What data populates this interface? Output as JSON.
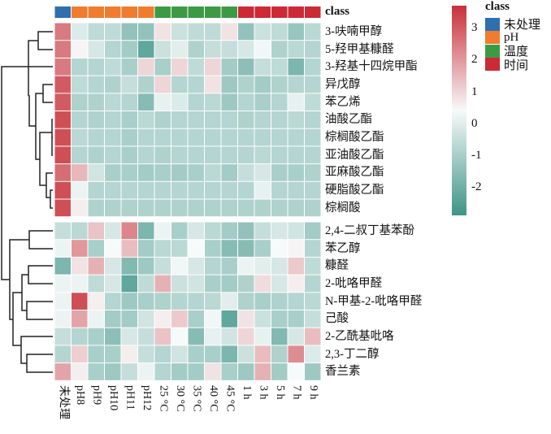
{
  "chart_data": {
    "type": "heatmap",
    "title": "",
    "columns": [
      "未处理",
      "pH8",
      "pH9",
      "pH10",
      "pH11",
      "pH12",
      "25 °C",
      "30 °C",
      "35 °C",
      "40 °C",
      "45 °C",
      "1 h",
      "3 h",
      "5 h",
      "7 h",
      "9 h"
    ],
    "column_classes": [
      "未处理",
      "pH",
      "pH",
      "pH",
      "pH",
      "pH",
      "温度",
      "温度",
      "温度",
      "温度",
      "温度",
      "时间",
      "时间",
      "时间",
      "时间",
      "时间"
    ],
    "rows_top": [
      {
        "name": "3-呋喃甲醇",
        "values": [
          2.5,
          -0.1,
          -0.6,
          -0.6,
          -1.4,
          -1.4,
          0.8,
          -0.4,
          -0.6,
          -0.6,
          0.8,
          -1.4,
          -0.4,
          -0.6,
          -1.3,
          -0.7
        ]
      },
      {
        "name": "5-羟甲基糠醛",
        "values": [
          2.5,
          0.5,
          -0.2,
          -0.8,
          -1.1,
          -2.3,
          -0.4,
          0.0,
          -0.9,
          -0.5,
          -0.5,
          -0.2,
          0.3,
          -0.9,
          -0.7,
          -0.8
        ]
      },
      {
        "name": "3-羟基十四烷甲酯",
        "values": [
          2.5,
          -0.8,
          -0.8,
          -0.6,
          -1.0,
          1.0,
          -1.0,
          1.0,
          -0.6,
          1.0,
          -1.1,
          -1.5,
          -0.5,
          -0.6,
          -1.8,
          -0.8
        ]
      },
      {
        "name": "异戊醇",
        "values": [
          3.0,
          -0.6,
          -0.8,
          -0.9,
          -0.5,
          -0.9,
          1.0,
          -0.8,
          -0.8,
          0.8,
          -1.2,
          -0.9,
          -1.1,
          -0.9,
          -0.8,
          -0.8
        ]
      },
      {
        "name": "苯乙烯",
        "values": [
          3.0,
          -0.9,
          -0.9,
          -0.7,
          -0.8,
          -1.6,
          0.1,
          -0.1,
          -0.8,
          -0.7,
          -1.2,
          -0.8,
          -1.0,
          -0.8,
          0.1,
          -0.6
        ]
      },
      {
        "name": "油酸乙酯",
        "values": [
          3.2,
          -0.8,
          -0.9,
          -0.8,
          -1.0,
          -0.7,
          -0.9,
          -0.8,
          -0.8,
          -0.8,
          -0.8,
          -0.9,
          -0.8,
          -0.8,
          -0.7,
          -0.8
        ]
      },
      {
        "name": "棕榈酸乙酯",
        "values": [
          3.2,
          -0.7,
          -0.8,
          -0.8,
          -1.0,
          -0.8,
          -0.8,
          -0.8,
          -0.8,
          -0.8,
          -0.8,
          -0.8,
          -0.8,
          -0.8,
          -0.8,
          -0.8
        ]
      },
      {
        "name": "亚油酸乙酯",
        "values": [
          3.2,
          -0.8,
          -0.9,
          -0.8,
          -1.0,
          -0.8,
          -0.9,
          -0.8,
          -0.8,
          -0.8,
          -0.8,
          -0.8,
          -0.7,
          -0.8,
          -0.8,
          -0.8
        ]
      },
      {
        "name": "亚麻酸乙酯",
        "values": [
          2.7,
          1.5,
          -0.3,
          -1.0,
          -1.0,
          -1.1,
          -1.0,
          -1.1,
          -1.0,
          -0.7,
          -1.1,
          -0.5,
          -0.2,
          -1.0,
          -1.0,
          -0.9
        ]
      },
      {
        "name": "硬脂酸乙酯",
        "values": [
          3.2,
          0.2,
          -0.8,
          -0.8,
          -0.8,
          -0.8,
          -0.8,
          -0.8,
          -0.8,
          -0.8,
          -0.8,
          -0.8,
          0.1,
          -0.8,
          -0.8,
          -0.8
        ]
      },
      {
        "name": "棕榈酸",
        "values": [
          3.2,
          0.6,
          -0.9,
          -0.9,
          -0.9,
          -0.9,
          -0.9,
          -0.9,
          -0.9,
          -0.9,
          -0.9,
          -0.9,
          -0.9,
          -0.9,
          -0.9,
          -0.9
        ]
      }
    ],
    "rows_bottom": [
      {
        "name": "2,4-二叔丁基苯酚",
        "values": [
          -0.5,
          -0.7,
          1.3,
          -0.2,
          2.3,
          -1.8,
          0.2,
          -1.0,
          -0.2,
          -0.7,
          -1.1,
          -1.4,
          -0.5,
          -0.2,
          -0.3,
          -1.1
        ]
      },
      {
        "name": "苯乙醇",
        "values": [
          0.2,
          2.0,
          -1.0,
          0.4,
          1.4,
          -1.1,
          -0.7,
          -0.7,
          0.4,
          -1.0,
          -1.6,
          -1.6,
          -1.0,
          0.4,
          0.5,
          -0.8
        ]
      },
      {
        "name": "糠醛",
        "values": [
          -1.8,
          0.8,
          1.6,
          -0.2,
          -1.7,
          -1.2,
          -0.5,
          0.3,
          -0.2,
          -0.8,
          -1.0,
          0.2,
          0.0,
          -0.2,
          1.2,
          -0.6
        ]
      },
      {
        "name": "2-吡咯甲醛",
        "values": [
          0.2,
          0.2,
          -0.6,
          -0.2,
          -2.3,
          -0.6,
          1.6,
          -0.4,
          -0.3,
          -1.0,
          -1.1,
          -0.9,
          0.9,
          -0.2,
          0.6,
          -0.8
        ]
      },
      {
        "name": "N-甲基-2-吡咯甲醛",
        "values": [
          0.2,
          3.2,
          0.6,
          -0.8,
          -1.2,
          -1.0,
          -0.9,
          -0.8,
          -0.8,
          -0.7,
          0.0,
          -0.9,
          -1.0,
          -0.9,
          -0.8,
          -0.7
        ]
      },
      {
        "name": "己酸",
        "values": [
          0.2,
          1.8,
          0.2,
          -1.1,
          -1.1,
          -0.3,
          0.6,
          1.2,
          -1.0,
          0.3,
          -2.3,
          0.8,
          -0.4,
          -1.0,
          -1.0,
          -0.5
        ]
      },
      {
        "name": "2-乙酰基吡咯",
        "values": [
          -0.5,
          -0.8,
          -1.0,
          -1.5,
          -0.2,
          -0.5,
          1.3,
          0.4,
          -1.6,
          0.1,
          -0.3,
          1.0,
          0.1,
          -1.7,
          -0.2,
          1.4
        ]
      },
      {
        "name": "2,3-丁二醇",
        "values": [
          -0.8,
          1.1,
          -1.0,
          -1.0,
          0.6,
          -0.5,
          -0.8,
          -0.3,
          -1.0,
          -1.0,
          -1.8,
          -0.4,
          1.4,
          -0.9,
          2.2,
          -0.1
        ]
      },
      {
        "name": "香兰素",
        "values": [
          1.8,
          0.6,
          -1.0,
          -1.2,
          -0.5,
          0.2,
          -0.8,
          -1.1,
          -1.1,
          0.8,
          -1.0,
          -1.2,
          1.6,
          -1.1,
          0.4,
          -1.2
        ]
      }
    ],
    "class_label": "class",
    "colorbar": {
      "ticks": [
        "3",
        "2",
        "1",
        "0",
        "-1",
        "-2"
      ],
      "tick_values": [
        3,
        2,
        1,
        0,
        -1,
        -2
      ],
      "range": [
        -2.9,
        3.7
      ],
      "low_color": "#3f9488",
      "mid_color": "#f7fafa",
      "high_color": "#c8303a",
      "mid_value": 0.4
    },
    "legend": {
      "title": "class",
      "items": [
        {
          "label": "未处理",
          "color": "#2f6fae"
        },
        {
          "label": "pH",
          "color": "#f07d2e"
        },
        {
          "label": "温度",
          "color": "#3c9a45"
        },
        {
          "label": "时间",
          "color": "#cc2a36"
        }
      ]
    }
  }
}
